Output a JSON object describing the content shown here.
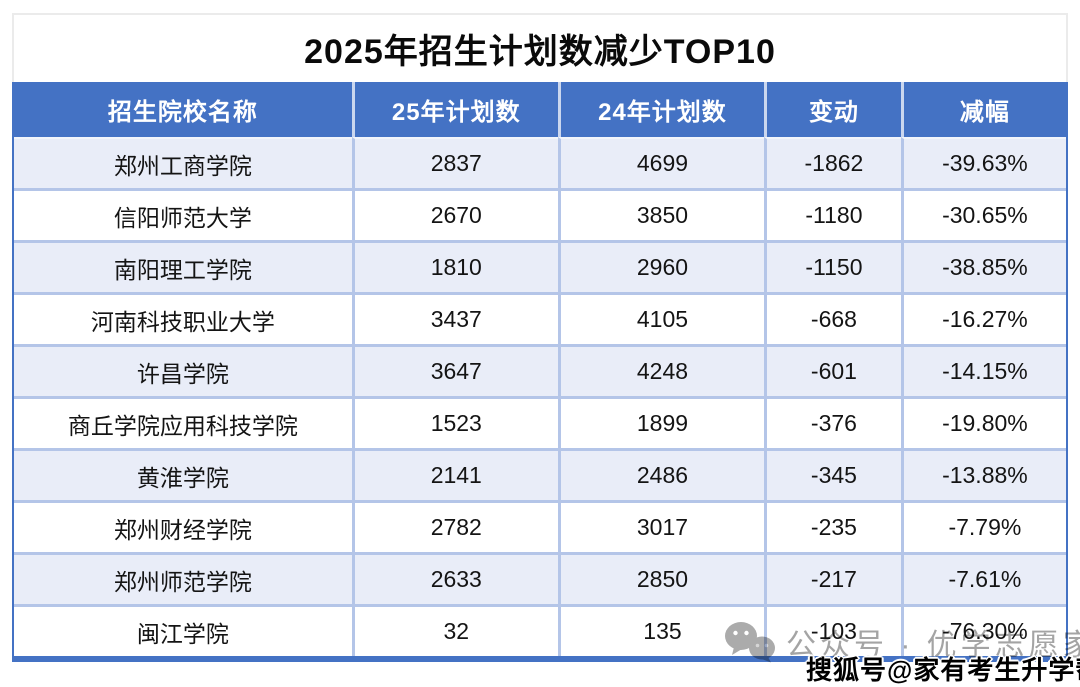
{
  "chart_data": {
    "type": "table",
    "title": "2025年招生计划数减少TOP10",
    "columns": [
      "招生院校名称",
      "25年计划数",
      "24年计划数",
      "变动",
      "减幅"
    ],
    "rows": [
      [
        "郑州工商学院",
        "2837",
        "4699",
        "-1862",
        "-39.63%"
      ],
      [
        "信阳师范大学",
        "2670",
        "3850",
        "-1180",
        "-30.65%"
      ],
      [
        "南阳理工学院",
        "1810",
        "2960",
        "-1150",
        "-38.85%"
      ],
      [
        "河南科技职业大学",
        "3437",
        "4105",
        "-668",
        "-16.27%"
      ],
      [
        "许昌学院",
        "3647",
        "4248",
        "-601",
        "-14.15%"
      ],
      [
        "商丘学院应用科技学院",
        "1523",
        "1899",
        "-376",
        "-19.80%"
      ],
      [
        "黄淮学院",
        "2141",
        "2486",
        "-345",
        "-13.88%"
      ],
      [
        "郑州财经学院",
        "2782",
        "3017",
        "-235",
        "-7.79%"
      ],
      [
        "郑州师范学院",
        "2633",
        "2850",
        "-217",
        "-7.61%"
      ],
      [
        "闽江学院",
        "32",
        "135",
        "-103",
        "-76.30%"
      ]
    ]
  },
  "watermarks": {
    "wechat_icon": "wechat-icon",
    "wechat_text": "公众号 · 优学志愿家",
    "sohu_text": "搜狐号@家有考生升学帮"
  },
  "colors": {
    "header_bg": "#4472C4",
    "band_row_bg": "#E9EDF8",
    "grid_line": "#B4C5E8",
    "outer_border": "#4472C4",
    "watermark_gray": "#A4A4A4"
  }
}
